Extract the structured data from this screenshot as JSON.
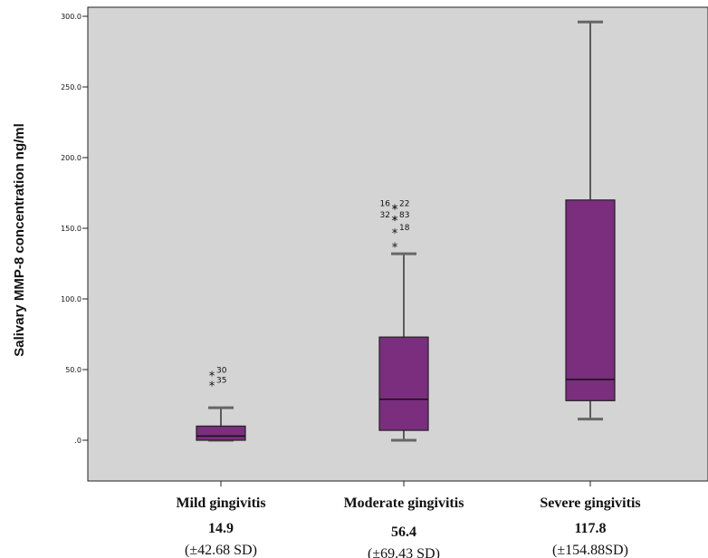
{
  "chart_data": {
    "type": "box",
    "ylabel": "Salivary MMP-8 concentration ng/ml",
    "ylim": [
      -30,
      300
    ],
    "yticks": [
      {
        "value": 0,
        "label": ".0"
      },
      {
        "value": 50,
        "label": "50.0"
      },
      {
        "value": 100,
        "label": "100.0"
      },
      {
        "value": 150,
        "label": "150.0"
      },
      {
        "value": 200,
        "label": "200.0"
      },
      {
        "value": 250,
        "label": "250.0"
      },
      {
        "value": 300,
        "label": "300.0"
      }
    ],
    "grid": false,
    "background_color": "#d4d4d4",
    "box_color": "#7b2d7e",
    "groups": [
      {
        "category": "Mild gingivitis",
        "mean": "14.9",
        "sd": "(±42.68 SD)",
        "whisker_low": 0,
        "q1": 0,
        "median": 3,
        "q3": 10,
        "whisker_high": 23,
        "outliers": [
          {
            "value": 47,
            "label": "30"
          },
          {
            "value": 40,
            "label": "35"
          }
        ]
      },
      {
        "category": "Moderate gingivitis",
        "mean": "56.4",
        "sd": "(±69.43 SD)",
        "whisker_low": 0,
        "q1": 7,
        "median": 29,
        "q3": 73,
        "whisker_high": 132,
        "outliers": [
          {
            "value": 138,
            "label": ""
          },
          {
            "value": 148,
            "label": "18"
          },
          {
            "value": 157,
            "label": "32",
            "label_side": "left"
          },
          {
            "value": 157,
            "label": "83"
          },
          {
            "value": 165,
            "label": "16",
            "label_side": "left"
          },
          {
            "value": 165,
            "label": "22"
          }
        ]
      },
      {
        "category": "Severe gingivitis",
        "mean": "117.8",
        "sd": "(±154.88SD)",
        "whisker_low": 15,
        "q1": 28,
        "median": 43,
        "q3": 170,
        "whisker_high": 296,
        "outliers": []
      }
    ]
  }
}
